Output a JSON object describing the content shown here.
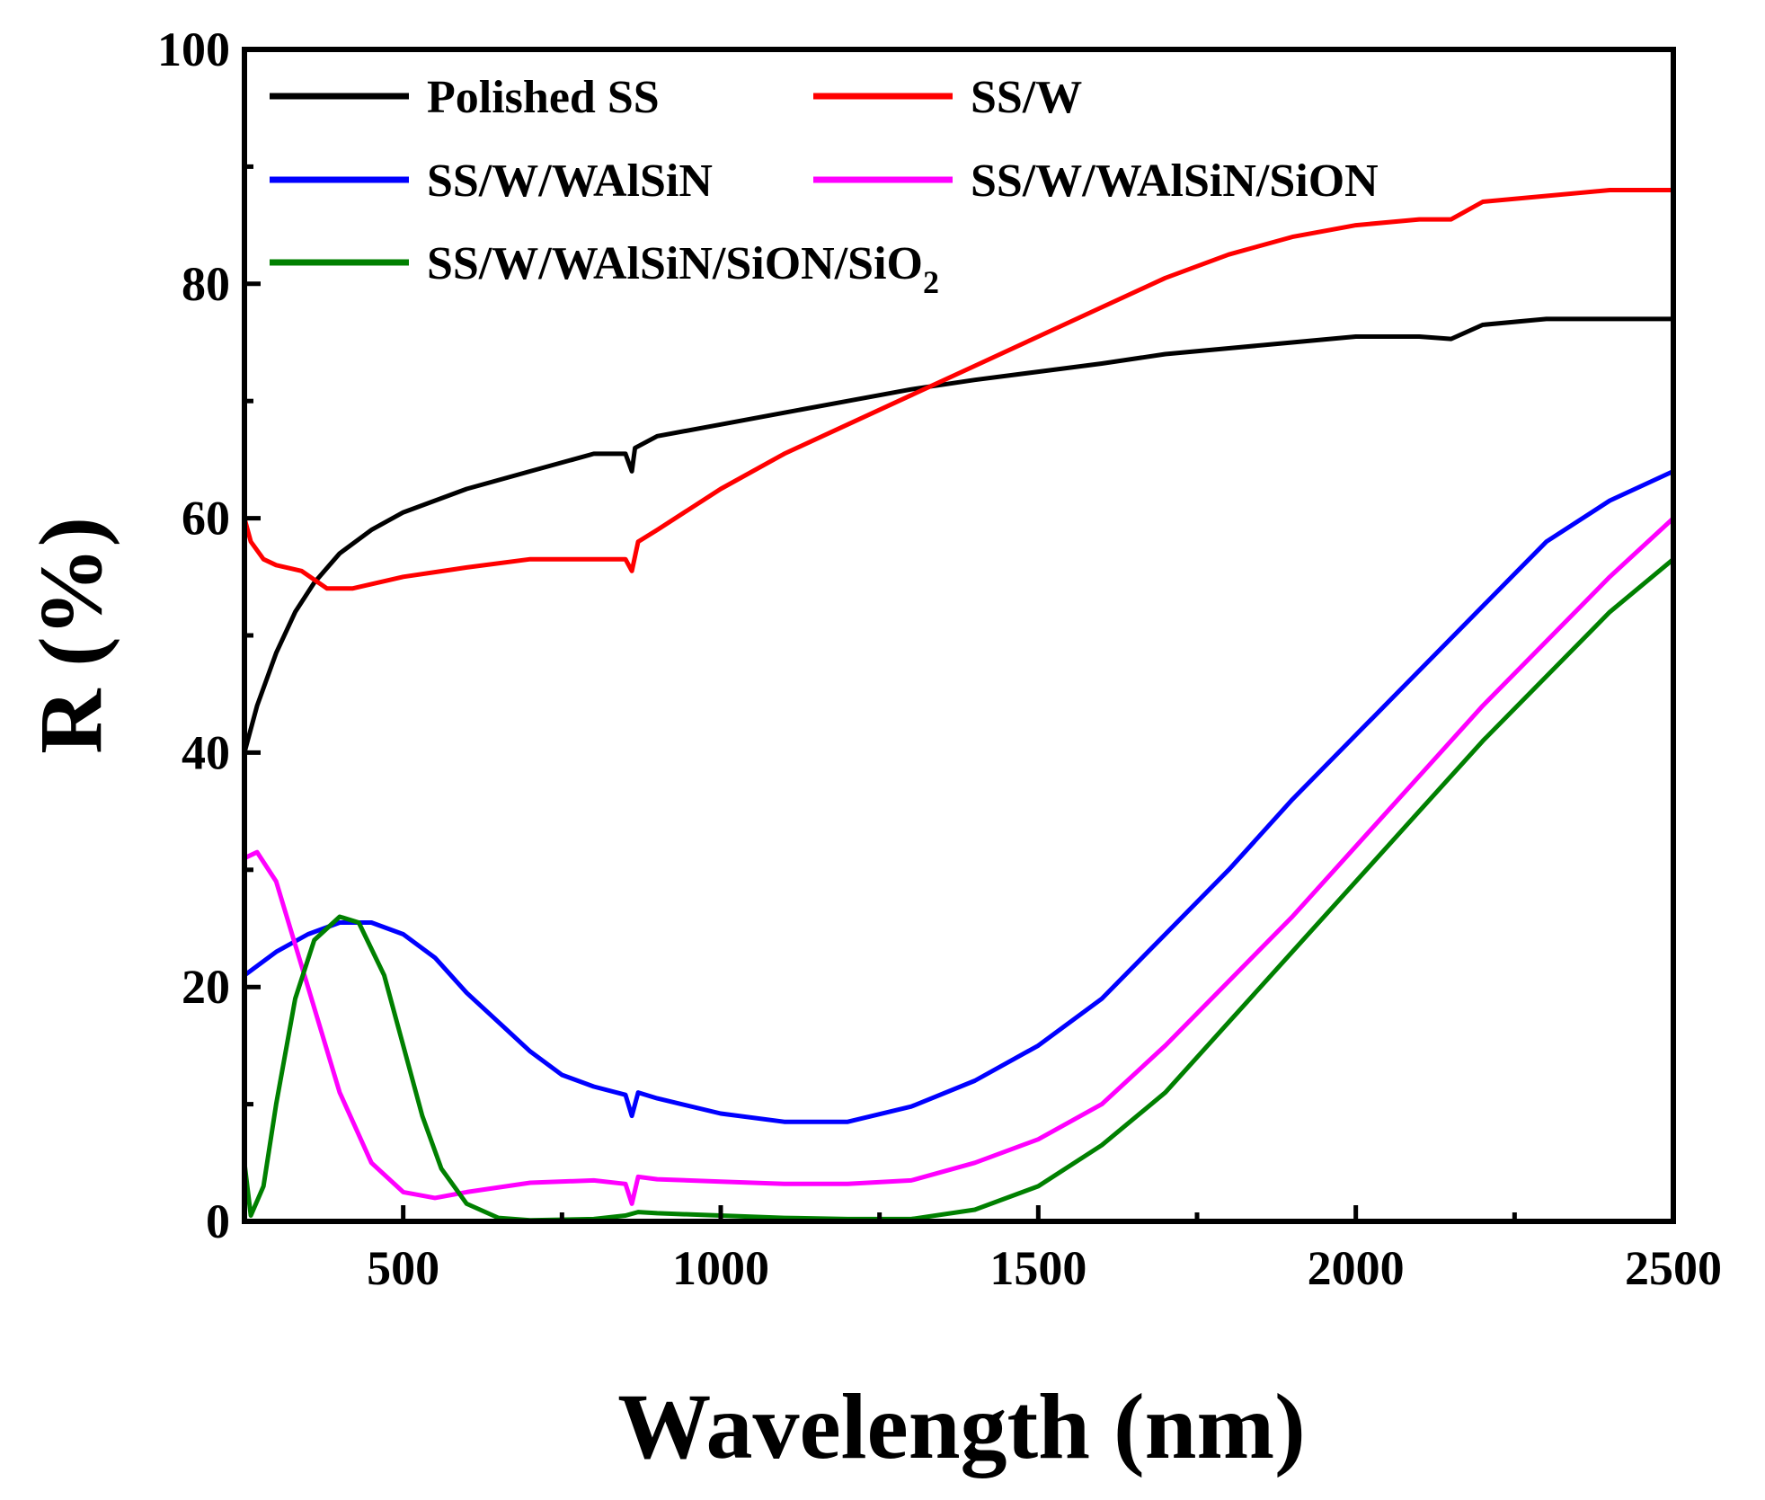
{
  "chart_data": {
    "type": "line",
    "xlabel": "Wavelength (nm)",
    "ylabel": "R (%)",
    "xlim": [
      250,
      2500
    ],
    "ylim": [
      0,
      100
    ],
    "x_ticks": [
      500,
      1000,
      1500,
      2000,
      2500
    ],
    "y_ticks": [
      0,
      20,
      40,
      60,
      80,
      100
    ],
    "grid": false,
    "legend_position": "top",
    "series": [
      {
        "name": "Polished SS",
        "color": "#000000",
        "points": [
          [
            250,
            40
          ],
          [
            270,
            44
          ],
          [
            300,
            48.5
          ],
          [
            330,
            52
          ],
          [
            360,
            54.5
          ],
          [
            400,
            57
          ],
          [
            450,
            59
          ],
          [
            500,
            60.5
          ],
          [
            600,
            62.5
          ],
          [
            700,
            64
          ],
          [
            800,
            65.5
          ],
          [
            850,
            65.5
          ],
          [
            860,
            64
          ],
          [
            865,
            66
          ],
          [
            900,
            67
          ],
          [
            1000,
            68
          ],
          [
            1100,
            69
          ],
          [
            1200,
            70
          ],
          [
            1300,
            71
          ],
          [
            1400,
            71.8
          ],
          [
            1500,
            72.5
          ],
          [
            1600,
            73.2
          ],
          [
            1700,
            74
          ],
          [
            1800,
            74.5
          ],
          [
            1900,
            75
          ],
          [
            2000,
            75.5
          ],
          [
            2100,
            75.5
          ],
          [
            2150,
            75.3
          ],
          [
            2200,
            76.5
          ],
          [
            2300,
            77
          ],
          [
            2400,
            77
          ],
          [
            2450,
            77
          ],
          [
            2500,
            77
          ]
        ]
      },
      {
        "name": "SS/W",
        "color": "#ff0000",
        "points": [
          [
            250,
            60
          ],
          [
            260,
            58
          ],
          [
            280,
            56.5
          ],
          [
            300,
            56
          ],
          [
            340,
            55.5
          ],
          [
            380,
            54
          ],
          [
            420,
            54
          ],
          [
            500,
            55
          ],
          [
            600,
            55.8
          ],
          [
            700,
            56.5
          ],
          [
            800,
            56.5
          ],
          [
            850,
            56.5
          ],
          [
            860,
            55.5
          ],
          [
            870,
            58
          ],
          [
            900,
            59
          ],
          [
            1000,
            62.5
          ],
          [
            1100,
            65.5
          ],
          [
            1200,
            68
          ],
          [
            1300,
            70.5
          ],
          [
            1400,
            73
          ],
          [
            1500,
            75.5
          ],
          [
            1600,
            78
          ],
          [
            1700,
            80.5
          ],
          [
            1800,
            82.5
          ],
          [
            1900,
            84
          ],
          [
            2000,
            85
          ],
          [
            2100,
            85.5
          ],
          [
            2150,
            85.5
          ],
          [
            2200,
            87
          ],
          [
            2300,
            87.5
          ],
          [
            2400,
            88
          ],
          [
            2450,
            88
          ],
          [
            2500,
            88
          ]
        ]
      },
      {
        "name": "SS/W/WAlSiN",
        "color": "#0000ff",
        "points": [
          [
            250,
            21
          ],
          [
            300,
            23
          ],
          [
            350,
            24.5
          ],
          [
            400,
            25.5
          ],
          [
            450,
            25.5
          ],
          [
            500,
            24.5
          ],
          [
            550,
            22.5
          ],
          [
            600,
            19.5
          ],
          [
            650,
            17
          ],
          [
            700,
            14.5
          ],
          [
            750,
            12.5
          ],
          [
            800,
            11.5
          ],
          [
            850,
            10.8
          ],
          [
            860,
            9
          ],
          [
            870,
            11
          ],
          [
            900,
            10.5
          ],
          [
            1000,
            9.2
          ],
          [
            1100,
            8.5
          ],
          [
            1200,
            8.5
          ],
          [
            1300,
            9.8
          ],
          [
            1400,
            12
          ],
          [
            1500,
            15
          ],
          [
            1600,
            19
          ],
          [
            1700,
            24.5
          ],
          [
            1800,
            30
          ],
          [
            1900,
            36
          ],
          [
            2000,
            41.5
          ],
          [
            2100,
            47
          ],
          [
            2200,
            52.5
          ],
          [
            2300,
            58
          ],
          [
            2400,
            61.5
          ],
          [
            2500,
            64
          ]
        ]
      },
      {
        "name": "SS/W/WAlSiN/SiON",
        "color": "#ff00ff",
        "points": [
          [
            250,
            31
          ],
          [
            270,
            31.5
          ],
          [
            300,
            29
          ],
          [
            350,
            20
          ],
          [
            400,
            11
          ],
          [
            450,
            5
          ],
          [
            500,
            2.5
          ],
          [
            550,
            2
          ],
          [
            600,
            2.5
          ],
          [
            700,
            3.3
          ],
          [
            800,
            3.5
          ],
          [
            850,
            3.2
          ],
          [
            860,
            1.5
          ],
          [
            870,
            3.8
          ],
          [
            900,
            3.6
          ],
          [
            1000,
            3.4
          ],
          [
            1100,
            3.2
          ],
          [
            1200,
            3.2
          ],
          [
            1300,
            3.5
          ],
          [
            1400,
            5
          ],
          [
            1500,
            7
          ],
          [
            1600,
            10
          ],
          [
            1700,
            15
          ],
          [
            1800,
            20.5
          ],
          [
            1900,
            26
          ],
          [
            2000,
            32
          ],
          [
            2100,
            38
          ],
          [
            2200,
            44
          ],
          [
            2300,
            49.5
          ],
          [
            2400,
            55
          ],
          [
            2500,
            60
          ]
        ]
      },
      {
        "name": "SS/W/WAlSiN/SiON/SiO2",
        "color": "#008000",
        "points": [
          [
            250,
            5
          ],
          [
            260,
            0.5
          ],
          [
            280,
            3
          ],
          [
            300,
            10
          ],
          [
            330,
            19
          ],
          [
            360,
            24
          ],
          [
            400,
            26
          ],
          [
            430,
            25.5
          ],
          [
            470,
            21
          ],
          [
            500,
            15
          ],
          [
            530,
            9
          ],
          [
            560,
            4.5
          ],
          [
            600,
            1.5
          ],
          [
            650,
            0.3
          ],
          [
            700,
            0.1
          ],
          [
            800,
            0.2
          ],
          [
            850,
            0.5
          ],
          [
            870,
            0.8
          ],
          [
            900,
            0.7
          ],
          [
            1000,
            0.5
          ],
          [
            1100,
            0.3
          ],
          [
            1200,
            0.2
          ],
          [
            1300,
            0.2
          ],
          [
            1400,
            1
          ],
          [
            1500,
            3
          ],
          [
            1600,
            6.5
          ],
          [
            1700,
            11
          ],
          [
            1800,
            17
          ],
          [
            1900,
            23
          ],
          [
            2000,
            29
          ],
          [
            2100,
            35
          ],
          [
            2200,
            41
          ],
          [
            2300,
            46.5
          ],
          [
            2400,
            52
          ],
          [
            2500,
            56.5
          ]
        ]
      }
    ]
  }
}
